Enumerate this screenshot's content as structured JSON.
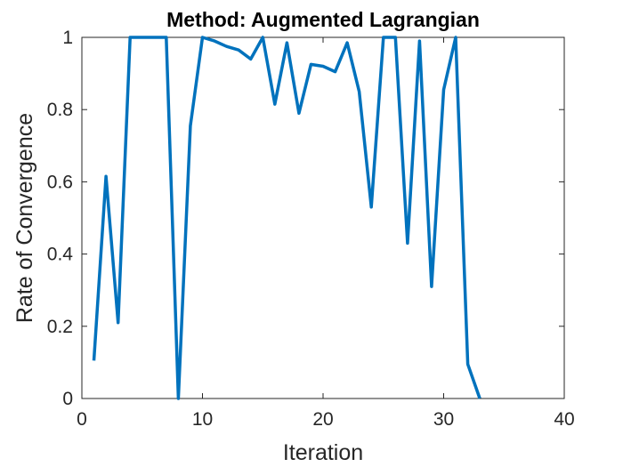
{
  "chart_data": {
    "type": "line",
    "title": "Method: Augmented Lagrangian",
    "xlabel": "Iteration",
    "ylabel": "Rate of Convergence",
    "xlim": [
      0,
      40
    ],
    "ylim": [
      0,
      1
    ],
    "xticks": [
      "0",
      "10",
      "20",
      "30",
      "40"
    ],
    "yticks": [
      "0",
      "0.2",
      "0.4",
      "0.6",
      "0.8",
      "1"
    ],
    "grid": false,
    "line_color": "#0072BD",
    "series": [
      {
        "x": [
          1,
          2,
          3,
          4,
          5,
          6,
          7,
          8,
          9,
          10,
          11,
          12,
          13,
          14,
          15,
          16,
          17,
          18,
          19,
          20,
          21,
          22,
          23,
          24,
          25,
          26,
          27,
          28,
          29,
          30,
          31,
          32,
          33
        ],
        "values": [
          0.105,
          0.615,
          0.21,
          1.0,
          1.0,
          1.0,
          1.0,
          0.0,
          0.755,
          1.0,
          0.99,
          0.975,
          0.965,
          0.94,
          1.0,
          0.815,
          0.985,
          0.79,
          0.925,
          0.92,
          0.905,
          0.985,
          0.85,
          0.53,
          1.0,
          1.0,
          0.43,
          0.99,
          0.31,
          0.855,
          1.0,
          0.095,
          0.0
        ]
      }
    ]
  }
}
